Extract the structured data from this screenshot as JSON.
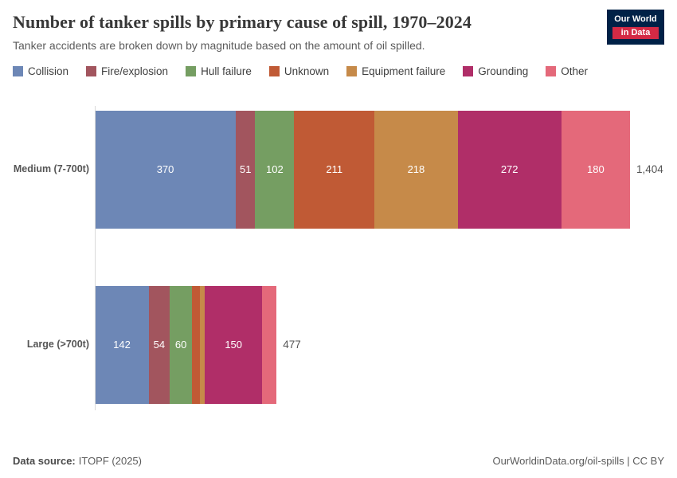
{
  "header": {
    "title": "Number of tanker spills by primary cause of spill, 1970–2024",
    "subtitle": "Tanker accidents are broken down by magnitude based on the amount of oil spilled."
  },
  "logo": {
    "line1": "Our World",
    "line2": "in Data"
  },
  "footer": {
    "datasource_label": "Data source:",
    "datasource_value": "ITOPF (2025)",
    "right": "OurWorldinData.org/oil-spills | CC BY"
  },
  "chart_data": {
    "type": "bar",
    "orientation": "horizontal",
    "stacked": true,
    "grid": false,
    "legend_position": "top",
    "title": "Number of tanker spills by primary cause of spill, 1970–2024",
    "subtitle": "Tanker accidents are broken down by magnitude based on the amount of oil spilled.",
    "categories": [
      "Medium (7-700t)",
      "Large (>700t)"
    ],
    "series": [
      {
        "name": "Collision",
        "color": "#6d87b6",
        "values": [
          370,
          142
        ]
      },
      {
        "name": "Fire/explosion",
        "color": "#a2555e",
        "values": [
          51,
          54
        ]
      },
      {
        "name": "Hull failure",
        "color": "#759e62",
        "values": [
          102,
          60
        ]
      },
      {
        "name": "Unknown",
        "color": "#c05a35",
        "values": [
          211,
          20
        ]
      },
      {
        "name": "Equipment failure",
        "color": "#c68a49",
        "values": [
          218,
          13
        ]
      },
      {
        "name": "Grounding",
        "color": "#b02e68",
        "values": [
          272,
          150
        ]
      },
      {
        "name": "Other",
        "color": "#e4697a",
        "values": [
          180,
          38
        ]
      }
    ],
    "totals": [
      "1,404",
      "477"
    ],
    "xlim": [
      0,
      1404
    ]
  }
}
